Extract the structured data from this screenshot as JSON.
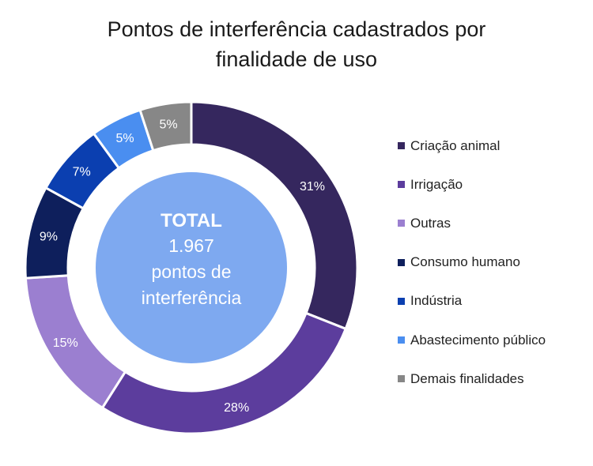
{
  "chart_data": {
    "type": "pie",
    "subtype": "donut",
    "title_lines": [
      "Pontos de interferência cadastrados por",
      "finalidade de uso"
    ],
    "categories": [
      "Criação animal",
      "Irrigação",
      "Outras",
      "Consumo humano",
      "Indústria",
      "Abastecimento público",
      "Demais finalidades"
    ],
    "values": [
      31,
      28,
      15,
      9,
      7,
      5,
      5
    ],
    "labels": [
      "31%",
      "28%",
      "15%",
      "9%",
      "7%",
      "5%",
      "5%"
    ],
    "colors": [
      "#35275e",
      "#5c3d9d",
      "#9b7fd0",
      "#0e1f5c",
      "#0b3fb0",
      "#4a8ef0",
      "#878787"
    ],
    "legend_position": "right",
    "center": {
      "heading": "TOTAL",
      "lines": [
        "1.967",
        "pontos de",
        "interferência"
      ],
      "color": "#7ea9f0"
    }
  }
}
